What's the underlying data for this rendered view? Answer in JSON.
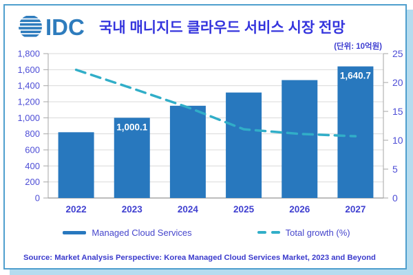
{
  "header": {
    "logo_text": "IDC",
    "title": "국내 매니지드 클라우드 서비스 시장 전망"
  },
  "unit_label": "(단위: 10억원)",
  "chart_data": {
    "type": "combo",
    "title": "국내 매니지드 클라우드 서비스 시장 전망",
    "categories": [
      "2022",
      "2023",
      "2024",
      "2025",
      "2026",
      "2027"
    ],
    "series": [
      {
        "name": "Managed Cloud Services",
        "type": "bar",
        "axis": "left",
        "color": "#2878be",
        "values": [
          820,
          1000.1,
          1150,
          1315,
          1470,
          1640.7
        ],
        "value_labels": [
          null,
          "1,000.1",
          null,
          null,
          null,
          "1,640.7"
        ]
      },
      {
        "name": "Total growth (%)",
        "type": "line",
        "axis": "right",
        "style": "dashed",
        "color": "#31aec8",
        "values": [
          22.2,
          19.0,
          15.7,
          11.9,
          11.1,
          10.7
        ]
      }
    ],
    "left_axis": {
      "min": 0,
      "max": 1800,
      "step": 200,
      "tick_labels": [
        "0",
        "200",
        "400",
        "600",
        "800",
        "1,000",
        "1,200",
        "1,400",
        "1,600",
        "1,800"
      ]
    },
    "right_axis": {
      "min": 0,
      "max": 25,
      "step": 5,
      "tick_labels": [
        "0",
        "5",
        "10",
        "15",
        "20",
        "25"
      ]
    },
    "grid": true,
    "legend_position": "bottom"
  },
  "legend": {
    "bar_label": "Managed Cloud Services",
    "line_label": "Total growth (%)"
  },
  "source": "Source: Market Analysis Perspective: Korea Managed Cloud Services Market, 2023 and Beyond",
  "icons": {
    "logo": "idc-globe-icon"
  },
  "colors": {
    "bar": "#2878be",
    "line": "#31aec8",
    "title_text": "#3434dd",
    "axis_text": "#4d4dd6",
    "grid": "#d9d9d9",
    "axis_line": "#a6a6a6",
    "frame_border": "#4e9ecd",
    "frame_shadow": "#b5dcef",
    "logo_blue": "#2e7cbd"
  }
}
